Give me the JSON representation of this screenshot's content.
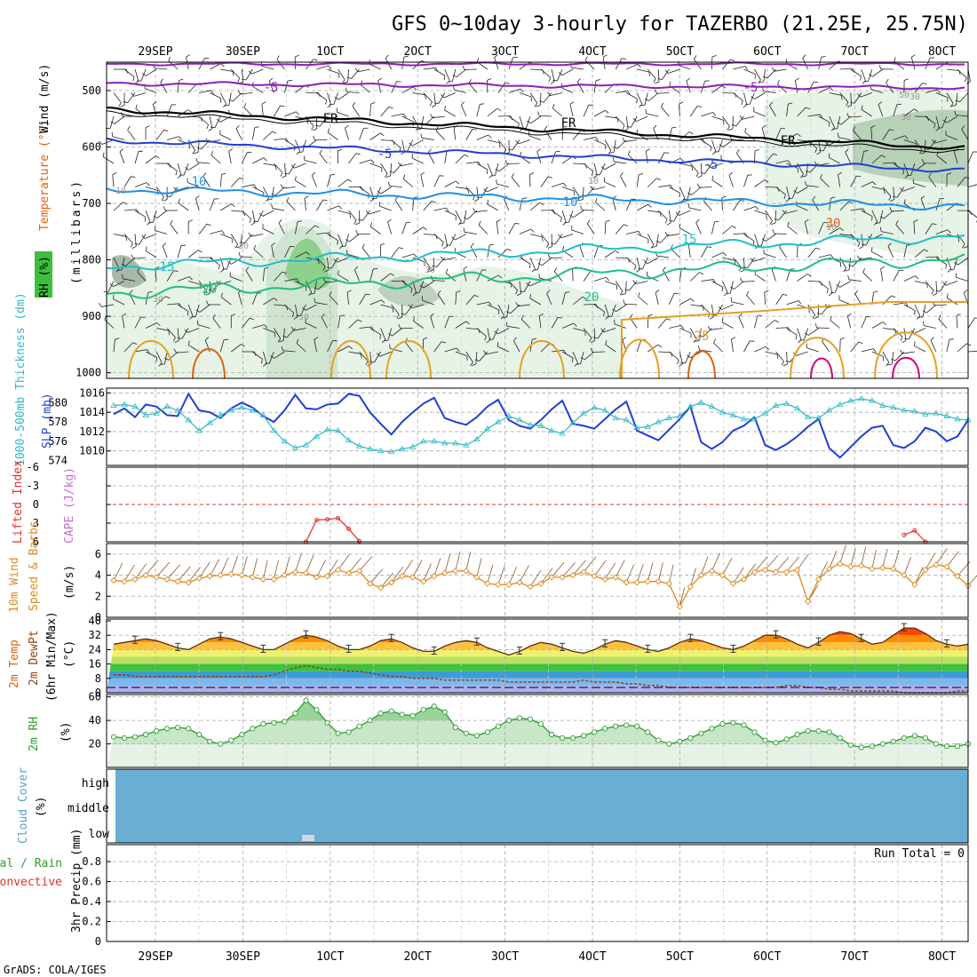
{
  "title": "GFS 0~10day 3-hourly for TAZERBO (21.25E, 25.75N)",
  "credit": "GrADS: COLA/IGES",
  "dates": [
    "29SEP",
    "30SEP",
    "1OCT",
    "2OCT",
    "3OCT",
    "4OCT",
    "5OCT",
    "6OCT",
    "7OCT",
    "8OCT"
  ],
  "colors": {
    "grid": "#a9a9a9",
    "rh": "#3cbf3c",
    "t_neg5": "#8a1fb5",
    "t_fr": "#000000",
    "t_5": "#1f3fd4",
    "t_10": "#1e90e6",
    "t_15": "#1fbfc7",
    "t_20": "#1fc07a",
    "t_25": "#e6a020",
    "t_30": "#e06010",
    "t_35": "#d0007a",
    "slp": "#1f3fd4",
    "thick": "#2fb8c8",
    "li": "#e03030",
    "wind10": "#e08a1f",
    "temp": "#8b4513",
    "rh2m": "#2e9c2e",
    "cloud": "#6aaed6"
  },
  "panels": {
    "upper": {
      "ylabel_wind": "Wind (m/s)",
      "ylabel_temp": "Temperature (°C)",
      "ylabel_mb": "(millibars)",
      "legend_rh": "RH (%)",
      "yticks": [
        "500",
        "600",
        "700",
        "800",
        "900",
        "1000"
      ],
      "contour_labels": [
        "-5",
        "-5",
        "FR",
        "FR",
        "FR",
        "-5",
        "-5",
        "10",
        "10",
        "15",
        "15",
        "20",
        "20",
        "25",
        "30"
      ],
      "rh_labels": [
        "30",
        "30",
        "10",
        "30",
        "10",
        "10",
        "30",
        "30",
        "50",
        "30"
      ]
    },
    "slp": {
      "ylabel_thick": "1000-500mb Thickness (dm)",
      "ylabel_slp": "SLP (mb)",
      "ticks_slp": [
        "1016",
        "1014",
        "1012",
        "1010"
      ],
      "ticks_thick": [
        "580",
        "578",
        "576",
        "574"
      ]
    },
    "cape": {
      "ylabel_li": "Lifted Index",
      "ylabel_cape": "CAPE (J/kg)",
      "ticks": [
        "-6",
        "-3",
        "0",
        "3",
        "6"
      ]
    },
    "wind10": {
      "ylabel": "10m Wind",
      "ylabel2": "Speed & Barbs",
      "ylabel3": "(m/s)",
      "ticks": [
        "6",
        "4",
        "2",
        "0"
      ]
    },
    "temp2m": {
      "ylabel": "2m Temp",
      "ylabel2": "2m DewPt",
      "ylabel3": "(6hr Min/Max)",
      "ylabel4": "(°C)",
      "ticks": [
        "40",
        "32",
        "24",
        "16",
        "8",
        "0"
      ]
    },
    "rh2m": {
      "ylabel": "2m RH",
      "ylabel2": "(%)",
      "ticks": [
        "60",
        "40",
        "20"
      ]
    },
    "cloud": {
      "ylabel": "Cloud Cover",
      "ylabel2": "(%)",
      "levels": [
        "high",
        "middle",
        "low"
      ]
    },
    "precip": {
      "ylabel_total": "Total / Rain",
      "ylabel_conv": "Convective",
      "ylabel": "3hr Precip (mm)",
      "run_total": "Run Total = 0",
      "ticks": [
        "0.8",
        "0.6",
        "0.4",
        "0.2",
        "0"
      ]
    }
  },
  "chart_data": [
    {
      "type": "line",
      "title": "SLP (mb)",
      "x": "3-hourly steps 0..80",
      "ylim": [
        1008.5,
        1016.5
      ],
      "values": [
        1013.8,
        1014.4,
        1013.5,
        1014.8,
        1014.6,
        1013.7,
        1013.6,
        1015.9,
        1014.2,
        1014.0,
        1013.4,
        1014.4,
        1015.0,
        1014.5,
        1013.6,
        1013.0,
        1014.2,
        1015.8,
        1014.4,
        1014.3,
        1014.8,
        1014.9,
        1015.9,
        1015.7,
        1014.0,
        1012.8,
        1011.7,
        1013.0,
        1014.0,
        1014.9,
        1015.5,
        1013.4,
        1013.0,
        1012.7,
        1013.5,
        1014.6,
        1015.3,
        1013.2,
        1012.6,
        1012.3,
        1013.2,
        1014.3,
        1015.2,
        1012.8,
        1012.6,
        1012.3,
        1013.3,
        1014.3,
        1015.1,
        1012.1,
        1011.6,
        1011.1,
        1012.2,
        1013.3,
        1014.6,
        1010.9,
        1010.2,
        1010.9,
        1012.1,
        1012.6,
        1013.5,
        1010.6,
        1010.1,
        1010.7,
        1011.5,
        1012.5,
        1013.3,
        1010.3,
        1009.3,
        1010.4,
        1011.5,
        1012.4,
        1012.6,
        1010.6,
        1010.3,
        1011.0,
        1012.4,
        1012.0,
        1011.0,
        1011.5,
        1013.2
      ]
    },
    {
      "type": "line",
      "title": "1000-500mb Thickness (dm)",
      "x": "3-hourly steps 0..80",
      "ylim": [
        573.5,
        581.5
      ],
      "values": [
        579.7,
        579.8,
        579.6,
        578.7,
        578.9,
        579.6,
        579.2,
        578.2,
        577.1,
        577.9,
        578.7,
        579.2,
        579.5,
        579.2,
        578.7,
        577.1,
        576.0,
        575.3,
        575.6,
        576.5,
        577.2,
        577.1,
        576.1,
        575.5,
        575.2,
        575.0,
        574.9,
        575.2,
        575.4,
        576.0,
        576.0,
        575.8,
        575.8,
        575.6,
        576.2,
        577.3,
        578.0,
        578.6,
        578.2,
        577.7,
        577.6,
        577.1,
        576.8,
        577.9,
        578.9,
        579.5,
        579.2,
        578.4,
        578.2,
        577.4,
        577.5,
        578.0,
        578.4,
        578.6,
        579.6,
        580.0,
        579.6,
        579.0,
        578.7,
        578.3,
        578.3,
        578.9,
        579.7,
        579.9,
        579.4,
        578.5,
        578.4,
        579.2,
        579.8,
        580.2,
        580.4,
        580.2,
        579.7,
        579.5,
        579.2,
        579.1,
        578.8,
        578.9,
        578.6,
        578.3,
        578.2
      ]
    },
    {
      "type": "line",
      "title": "Lifted Index",
      "x": "3-hourly steps",
      "ylim": [
        6,
        -6
      ],
      "values": [
        null,
        null,
        null,
        null,
        null,
        null,
        null,
        null,
        null,
        null,
        null,
        null,
        null,
        null,
        null,
        null,
        null,
        null,
        6.0,
        2.5,
        2.4,
        2.2,
        3.9,
        5.9,
        null,
        null,
        null,
        null,
        null,
        null,
        null,
        null,
        null,
        null,
        null,
        null,
        null,
        null,
        null,
        null,
        null,
        null,
        null,
        null,
        null,
        null,
        null,
        null,
        null,
        null,
        null,
        null,
        null,
        null,
        null,
        null,
        null,
        null,
        null,
        null,
        null,
        null,
        null,
        null,
        null,
        null,
        null,
        null,
        null,
        null,
        null,
        null,
        null,
        null,
        4.9,
        4.2,
        6.0,
        null,
        null,
        null,
        null
      ]
    },
    {
      "type": "line",
      "title": "10m Wind Speed (m/s)",
      "x": "3-hourly steps 0..80",
      "ylim": [
        0,
        7
      ],
      "values": [
        3.5,
        3.4,
        3.6,
        4.0,
        3.8,
        3.6,
        3.4,
        3.3,
        3.7,
        3.9,
        4.0,
        4.1,
        4.0,
        3.8,
        3.6,
        3.6,
        4.0,
        4.3,
        4.2,
        3.8,
        3.9,
        4.5,
        4.2,
        4.4,
        3.2,
        2.8,
        3.3,
        3.9,
        3.8,
        3.4,
        3.9,
        4.2,
        4.4,
        4.4,
        3.8,
        3.2,
        3.1,
        3.1,
        3.3,
        2.9,
        3.2,
        3.8,
        3.8,
        4.0,
        4.3,
        3.9,
        3.6,
        3.8,
        3.3,
        3.3,
        3.4,
        3.4,
        3.2,
        1.0,
        2.9,
        4.0,
        4.4,
        4.0,
        3.2,
        3.6,
        4.3,
        4.5,
        4.3,
        4.3,
        4.5,
        1.5,
        3.6,
        4.6,
        5.1,
        4.8,
        4.9,
        4.6,
        4.7,
        4.6,
        4.0,
        3.1,
        4.5,
        5.0,
        4.8,
        3.9,
        3.0
      ]
    },
    {
      "type": "area",
      "title": "2m Temp (°C)",
      "x": "3-hourly steps 0..80",
      "ylim": [
        0,
        41
      ],
      "values": [
        27,
        28,
        29,
        30,
        29,
        27,
        25,
        24,
        27,
        30,
        31,
        30,
        28,
        26,
        24,
        24,
        27,
        30,
        32,
        31,
        29,
        26,
        24,
        24,
        26,
        29,
        30,
        28,
        25,
        23,
        23,
        26,
        28,
        29,
        28,
        25,
        23,
        21,
        23,
        26,
        28,
        27,
        25,
        23,
        22,
        24,
        27,
        29,
        28,
        26,
        24,
        23,
        25,
        28,
        30,
        29,
        27,
        25,
        24,
        26,
        29,
        32,
        32,
        30,
        27,
        25,
        28,
        32,
        34,
        33,
        30,
        27,
        28,
        32,
        36,
        36,
        33,
        29,
        27,
        26,
        27
      ]
    },
    {
      "type": "line",
      "title": "2m DewPt (°C)",
      "x": "3-hourly steps 0..80",
      "ylim": [
        0,
        41
      ],
      "values": [
        10,
        10,
        9,
        9,
        9,
        9,
        9,
        9,
        9,
        9,
        9,
        9,
        9,
        9,
        9,
        10,
        12,
        14,
        15,
        14,
        13,
        13,
        12,
        12,
        11,
        10,
        9,
        9,
        8,
        8,
        8,
        7,
        7,
        7,
        7,
        7,
        7,
        6,
        6,
        6,
        6,
        6,
        6,
        6,
        7,
        6,
        6,
        6,
        5,
        5,
        4,
        4,
        3,
        3,
        3,
        3,
        3,
        3,
        3,
        3,
        3,
        3,
        3,
        4,
        4,
        3,
        3,
        2,
        2,
        1,
        1,
        1,
        1,
        1,
        0,
        0,
        0,
        0,
        0,
        1,
        1
      ]
    },
    {
      "type": "area",
      "title": "2m RH (%)",
      "x": "3-hourly steps 0..80",
      "ylim": [
        0,
        62
      ],
      "values": [
        26,
        25,
        26,
        28,
        31,
        33,
        34,
        33,
        28,
        22,
        20,
        23,
        28,
        33,
        37,
        38,
        39,
        46,
        57,
        49,
        38,
        29,
        30,
        35,
        40,
        46,
        48,
        45,
        44,
        49,
        52,
        47,
        34,
        29,
        27,
        30,
        35,
        40,
        42,
        41,
        37,
        28,
        25,
        25,
        27,
        30,
        33,
        35,
        36,
        35,
        30,
        23,
        20,
        22,
        25,
        29,
        33,
        37,
        38,
        36,
        30,
        23,
        21,
        24,
        28,
        31,
        31,
        30,
        25,
        19,
        17,
        18,
        20,
        22,
        25,
        27,
        25,
        20,
        18,
        18,
        20
      ]
    },
    {
      "type": "bar",
      "title": "3hr Precip (mm)",
      "x": "3-hourly steps",
      "ylim": [
        0,
        1
      ],
      "values": [],
      "run_total": 0
    }
  ]
}
